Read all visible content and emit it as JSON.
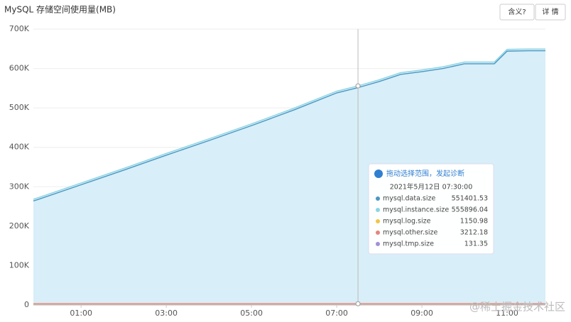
{
  "chart_data": {
    "type": "area",
    "title": "MySQL 存储空间使用量(MB)",
    "buttons": [
      "含义?",
      "详 情"
    ],
    "watermark": "@稀土掘金技术社区",
    "x": [
      -0.12,
      0,
      1,
      2,
      3,
      4,
      5,
      6,
      7,
      7.5,
      8,
      8.5,
      9,
      9.5,
      10,
      10.5,
      10.7,
      11,
      11.5,
      11.9
    ],
    "xlim": [
      -0.12,
      11.9
    ],
    "xticks": [
      {
        "value": 1,
        "label": "01:00"
      },
      {
        "value": 3,
        "label": "03:00"
      },
      {
        "value": 5,
        "label": "05:00"
      },
      {
        "value": 7,
        "label": "07:00"
      },
      {
        "value": 9,
        "label": "09:00"
      },
      {
        "value": 11,
        "label": "11:00"
      }
    ],
    "ylim": [
      0,
      700000
    ],
    "yticks": [
      0,
      {
        "value": 100000,
        "label": "100K"
      },
      {
        "value": 200000,
        "label": "200K"
      },
      {
        "value": 300000,
        "label": "300K"
      },
      {
        "value": 400000,
        "label": "400K"
      },
      {
        "value": 500000,
        "label": "500K"
      },
      {
        "value": 600000,
        "label": "600K"
      },
      {
        "value": 700000,
        "label": "700K"
      }
    ],
    "grid": true,
    "area_color": "#d8eef8",
    "series": [
      {
        "name": "mysql.data.size",
        "color": "#4a97c4",
        "values": [
          264000,
          268000,
          305000,
          342000,
          380000,
          417000,
          455000,
          495000,
          538000,
          551401.53,
          567000,
          585000,
          592000,
          600000,
          612000,
          612000,
          612000,
          644000,
          645000,
          645000
        ]
      },
      {
        "name": "mysql.instance.size",
        "color": "#8cd5e3",
        "values": [
          268500,
          272500,
          309500,
          346500,
          384500,
          421500,
          459500,
          499500,
          542500,
          555896.04,
          571500,
          589500,
          596500,
          604500,
          616500,
          616500,
          616500,
          648500,
          649500,
          649500
        ]
      },
      {
        "name": "mysql.log.size",
        "color": "#f2c447",
        "values": [
          1150,
          1150,
          1150,
          1150,
          1150,
          1150,
          1150,
          1150,
          1150,
          1150.98,
          1150,
          1150,
          1150,
          1150,
          1150,
          1150,
          1150,
          1150,
          1150,
          1150
        ]
      },
      {
        "name": "mysql.other.size",
        "color": "#e5857a",
        "values": [
          3210,
          3210,
          3210,
          3210,
          3210,
          3210,
          3210,
          3210,
          3210,
          3212.18,
          3212,
          3212,
          3212,
          3212,
          3212,
          3212,
          3212,
          3212,
          3212,
          3212
        ]
      },
      {
        "name": "mysql.tmp.size",
        "color": "#a390d6",
        "values": [
          131,
          131,
          131,
          131,
          131,
          131,
          131,
          131,
          131,
          131.35,
          131,
          131,
          131,
          131,
          131,
          131,
          131,
          131,
          131,
          131
        ]
      }
    ],
    "tooltip": {
      "x": 7.5,
      "header": "拖动选择范围，发起诊断",
      "title": "2021年5月12日 07:30:00"
    }
  }
}
